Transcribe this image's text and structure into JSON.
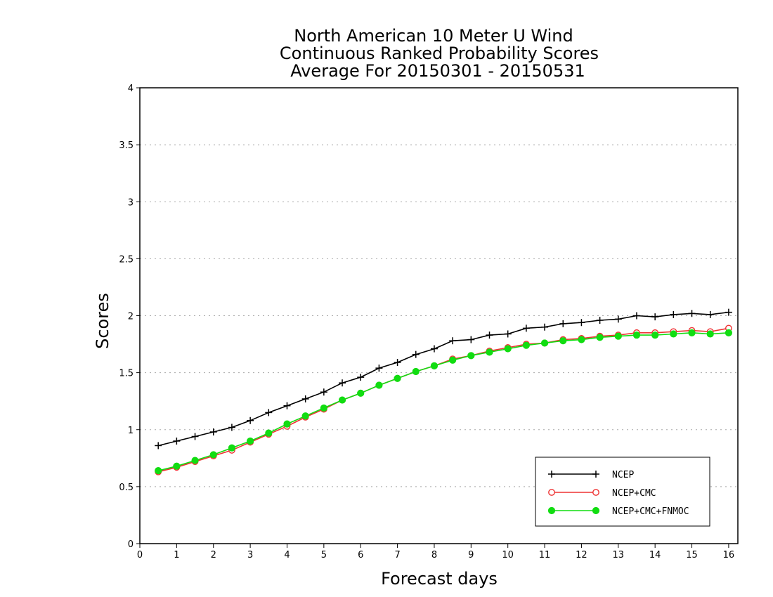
{
  "chart_data": {
    "type": "line",
    "title_lines": [
      "North American 10 Meter U Wind",
      "Continuous Ranked Probability Scores",
      "Average For 20150301 - 20150531"
    ],
    "xlabel": "Forecast days",
    "ylabel": "Scores",
    "xlim": [
      0,
      16.25
    ],
    "ylim": [
      0,
      4
    ],
    "x_ticks": [
      0,
      1,
      2,
      3,
      4,
      5,
      6,
      7,
      8,
      9,
      10,
      11,
      12,
      13,
      14,
      15,
      16
    ],
    "y_ticks": [
      0,
      0.5,
      1,
      1.5,
      2,
      2.5,
      3,
      3.5,
      4
    ],
    "y_tick_labels": [
      "0",
      "0.5",
      "1",
      "1.5",
      "2",
      "2.5",
      "3",
      "3.5",
      "4"
    ],
    "grid": "horizontal dotted",
    "legend_position": "bottom-right",
    "x": [
      0.5,
      1,
      1.5,
      2,
      2.5,
      3,
      3.5,
      4,
      4.5,
      5,
      5.5,
      6,
      6.5,
      7,
      7.5,
      8,
      8.5,
      9,
      9.5,
      10,
      10.5,
      11,
      11.5,
      12,
      12.5,
      13,
      13.5,
      14,
      14.5,
      15,
      15.5,
      16
    ],
    "series": [
      {
        "name": "NCEP",
        "color": "#000000",
        "marker": "plus",
        "values": [
          0.86,
          0.9,
          0.94,
          0.98,
          1.02,
          1.08,
          1.15,
          1.21,
          1.27,
          1.33,
          1.41,
          1.46,
          1.54,
          1.59,
          1.66,
          1.71,
          1.78,
          1.79,
          1.83,
          1.84,
          1.89,
          1.9,
          1.93,
          1.94,
          1.96,
          1.97,
          2.0,
          1.99,
          2.01,
          2.02,
          2.01,
          2.03
        ]
      },
      {
        "name": "NCEP+CMC",
        "color": "#ee3333",
        "marker": "open-circle",
        "values": [
          0.63,
          0.67,
          0.72,
          0.77,
          0.82,
          0.89,
          0.96,
          1.03,
          1.11,
          1.18,
          1.26,
          1.32,
          1.39,
          1.45,
          1.51,
          1.56,
          1.62,
          1.65,
          1.69,
          1.72,
          1.75,
          1.76,
          1.79,
          1.8,
          1.82,
          1.83,
          1.85,
          1.85,
          1.86,
          1.87,
          1.86,
          1.89
        ]
      },
      {
        "name": "NCEP+CMC+FNMOC",
        "color": "#11dd11",
        "marker": "filled-circle",
        "values": [
          0.64,
          0.68,
          0.73,
          0.78,
          0.84,
          0.9,
          0.97,
          1.05,
          1.12,
          1.19,
          1.26,
          1.32,
          1.39,
          1.45,
          1.51,
          1.56,
          1.61,
          1.65,
          1.68,
          1.71,
          1.74,
          1.76,
          1.78,
          1.79,
          1.81,
          1.82,
          1.83,
          1.83,
          1.84,
          1.85,
          1.84,
          1.85
        ]
      }
    ]
  }
}
